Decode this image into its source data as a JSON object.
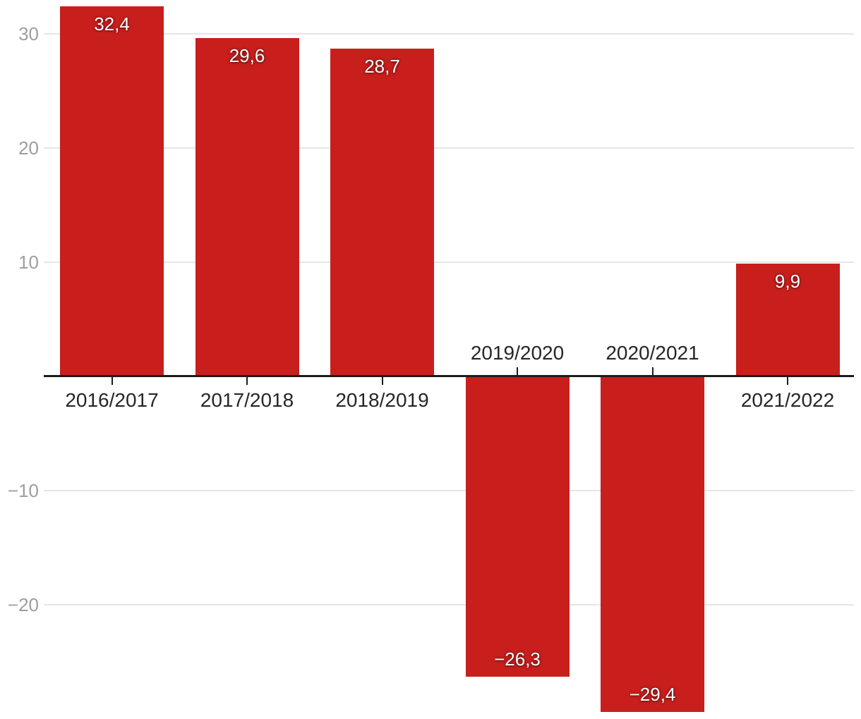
{
  "chart_data": {
    "type": "bar",
    "categories": [
      "2016/2017",
      "2017/2018",
      "2018/2019",
      "2019/2020",
      "2020/2021",
      "2021/2022"
    ],
    "values": [
      32.4,
      29.6,
      28.7,
      -26.3,
      -29.4,
      9.9
    ],
    "value_labels": [
      "32,4",
      "29,6",
      "28,7",
      "−26,3",
      "−29,4",
      "9,9"
    ],
    "y_ticks": [
      30,
      20,
      10,
      -10,
      -20
    ],
    "y_tick_labels": [
      "30",
      "20",
      "10",
      "−10",
      "−20"
    ],
    "ylim": [
      -30.5,
      32.9
    ],
    "grid": true,
    "legend": "none",
    "title": "",
    "xlabel": "",
    "ylabel": "",
    "colors": {
      "bar": "#c81f1d",
      "value_label": "#ffffff",
      "gridline": "#e5e5e5",
      "axis_line": "#1c1c1c",
      "y_tick_label": "#9e9e9e",
      "category_label": "#262626"
    }
  }
}
